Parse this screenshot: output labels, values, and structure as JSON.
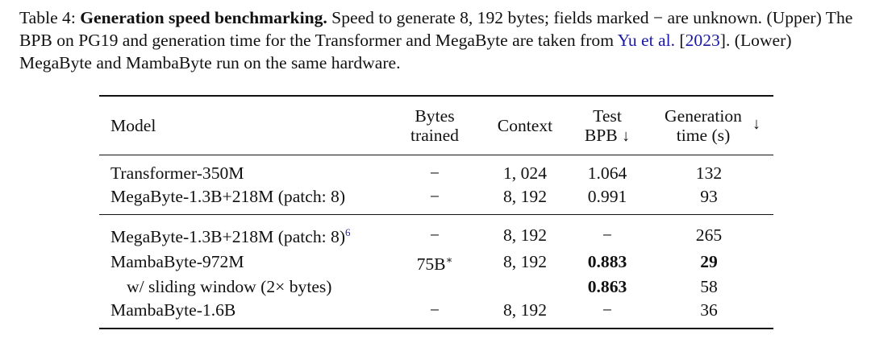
{
  "caption": {
    "label": "Table 4: ",
    "title": "Generation speed benchmarking.",
    "text1": " Speed to generate 8, 192 bytes; fields marked − are unknown. (Upper) The BPB on PG19 and generation time for the Transformer and MegaByte are taken from ",
    "cite_author": "Yu et al.",
    "cite_open": " [",
    "cite_year": "2023",
    "text2": "]. (Lower) MegaByte and MambaByte run on the same hardware."
  },
  "table": {
    "headers": {
      "model": "Model",
      "bytes_line1": "Bytes",
      "bytes_line2": "trained",
      "context": "Context",
      "bpb_line1": "Test",
      "bpb_line2": "BPB",
      "bpb_arrow": "↓",
      "gen_line1": "Generation",
      "gen_line2": "time (s)",
      "gen_arrow": "↓"
    },
    "upper": [
      {
        "model": "Transformer-350M",
        "bytes": "−",
        "context": "1, 024",
        "bpb": "1.064",
        "time": "132"
      },
      {
        "model": "MegaByte-1.3B+218M (patch: 8)",
        "bytes": "−",
        "context": "8, 192",
        "bpb": "0.991",
        "time": "93"
      }
    ],
    "lower": [
      {
        "model": "MegaByte-1.3B+218M (patch: 8)",
        "footnote": "6",
        "bytes": "−",
        "context": "8, 192",
        "bpb": "−",
        "time": "265"
      },
      {
        "model": "MambaByte-972M",
        "bytes": "75B",
        "bytes_mark": "∗",
        "context": "8, 192",
        "bpb": "0.883",
        "time": "29"
      },
      {
        "model": "w/ sliding window (2× bytes)",
        "bytes": "",
        "context": "",
        "bpb": "0.863",
        "time": "58"
      },
      {
        "model": "MambaByte-1.6B",
        "bytes": "−",
        "context": "8, 192",
        "bpb": "−",
        "time": "36"
      }
    ]
  }
}
